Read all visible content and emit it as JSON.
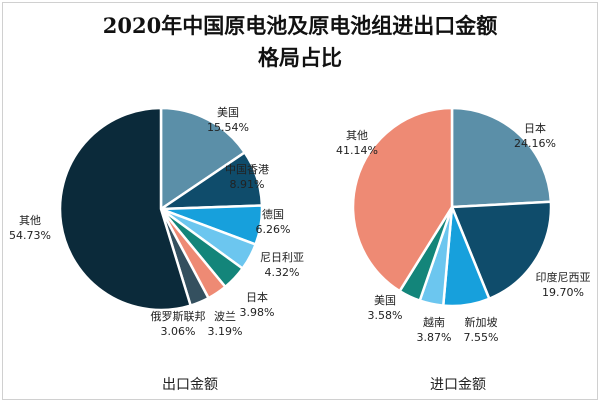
{
  "title_line1": "2020年中国原电池及原电池组进出口金额",
  "title_line2": "格局占比",
  "chart_data": [
    {
      "type": "pie",
      "title": "出口金额",
      "unit": "%",
      "slices": [
        {
          "label": "美国",
          "value": 15.54,
          "value_label": "15.54%",
          "color": "#5b8fa8"
        },
        {
          "label": "中国香港",
          "value": 8.91,
          "value_label": "8.91%",
          "color": "#0f4c6b"
        },
        {
          "label": "德国",
          "value": 6.26,
          "value_label": "6.26%",
          "color": "#17a0dc"
        },
        {
          "label": "尼日利亚",
          "value": 4.32,
          "value_label": "4.32%",
          "color": "#6cc6ef"
        },
        {
          "label": "日本",
          "value": 3.98,
          "value_label": "3.98%",
          "color": "#13857a"
        },
        {
          "label": "波兰",
          "value": 3.19,
          "value_label": "3.19%",
          "color": "#ee8a74"
        },
        {
          "label": "俄罗斯联邦",
          "value": 3.06,
          "value_label": "3.06%",
          "color": "#34505f"
        },
        {
          "label": "其他",
          "value": 54.73,
          "value_label": "54.73%",
          "color": "#0b2a3a"
        }
      ]
    },
    {
      "type": "pie",
      "title": "进口金额",
      "unit": "%",
      "slices": [
        {
          "label": "日本",
          "value": 24.16,
          "value_label": "24.16%",
          "color": "#5b8fa8"
        },
        {
          "label": "印度尼西亚",
          "value": 19.7,
          "value_label": "19.70%",
          "color": "#0f4c6b"
        },
        {
          "label": "新加坡",
          "value": 7.55,
          "value_label": "7.55%",
          "color": "#17a0dc"
        },
        {
          "label": "越南",
          "value": 3.87,
          "value_label": "3.87%",
          "color": "#6cc6ef"
        },
        {
          "label": "美国",
          "value": 3.58,
          "value_label": "3.58%",
          "color": "#13857a"
        },
        {
          "label": "其他",
          "value": 41.14,
          "value_label": "41.14%",
          "color": "#ee8a74"
        }
      ]
    }
  ]
}
